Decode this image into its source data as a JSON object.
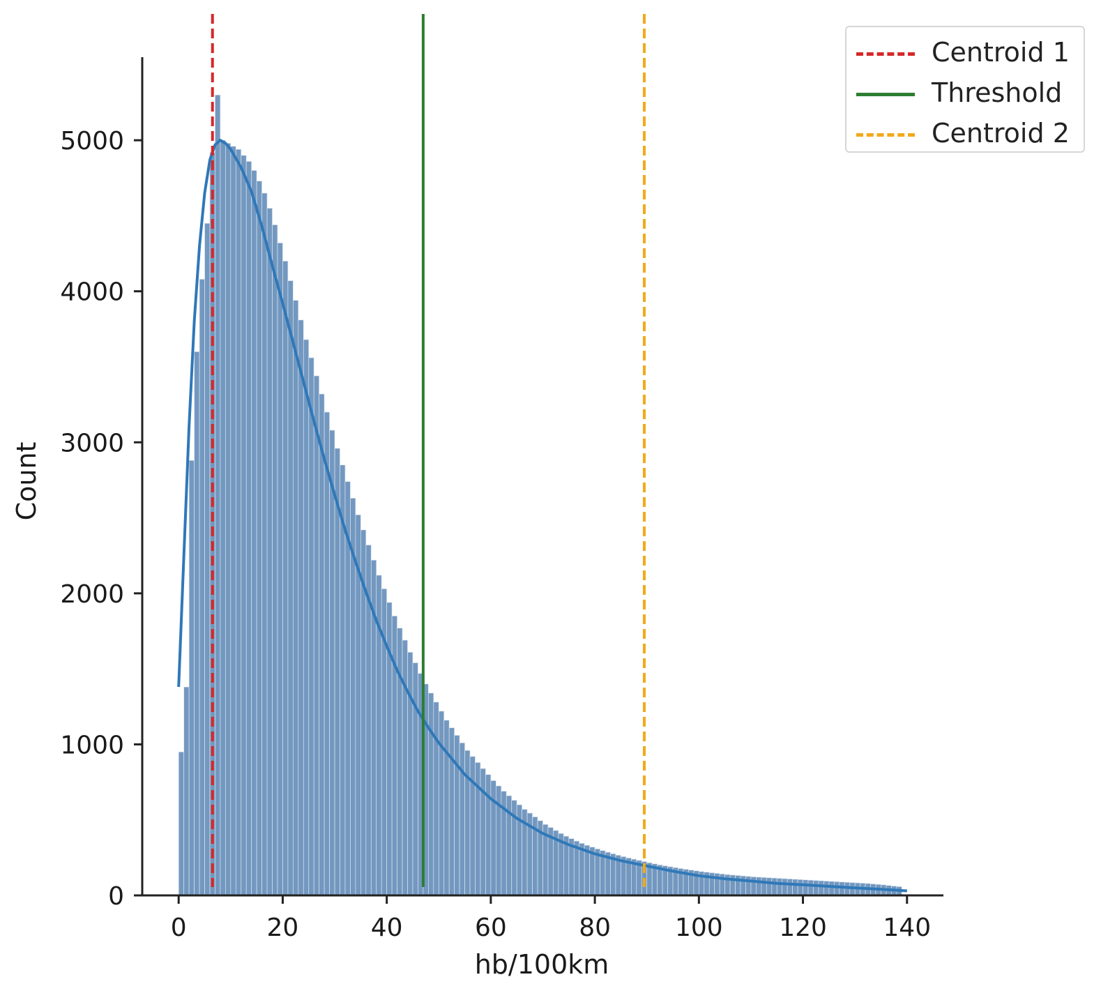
{
  "chart_data": {
    "type": "bar",
    "title": "",
    "xlabel": "hb/100km",
    "ylabel": "Count",
    "xlim": [
      -7,
      147
    ],
    "ylim": [
      0,
      5550
    ],
    "xticks": [
      0,
      20,
      40,
      60,
      80,
      100,
      120,
      140
    ],
    "yticks": [
      0,
      1000,
      2000,
      3000,
      4000,
      5000
    ],
    "bin_width": 1,
    "bin_start": 0,
    "bar_color": "#5a86b5",
    "kde_color": "#2f78b8",
    "histogram_counts": [
      950,
      1380,
      2880,
      3600,
      4080,
      4450,
      4920,
      5300,
      5000,
      4980,
      4960,
      4940,
      4900,
      4860,
      4800,
      4730,
      4650,
      4550,
      4440,
      4320,
      4200,
      4070,
      3940,
      3810,
      3680,
      3560,
      3440,
      3320,
      3200,
      3080,
      2960,
      2850,
      2740,
      2630,
      2520,
      2420,
      2320,
      2220,
      2120,
      2030,
      1940,
      1850,
      1770,
      1690,
      1610,
      1540,
      1470,
      1400,
      1340,
      1280,
      1220,
      1160,
      1110,
      1060,
      1010,
      960,
      920,
      880,
      840,
      800,
      760,
      725,
      690,
      660,
      630,
      600,
      570,
      545,
      520,
      495,
      470,
      450,
      430,
      410,
      392,
      376,
      360,
      345,
      332,
      320,
      308,
      297,
      286,
      276,
      266,
      257,
      248,
      240,
      232,
      224,
      216,
      209,
      202,
      196,
      190,
      184,
      178,
      173,
      168,
      163,
      158,
      154,
      150,
      146,
      142,
      138,
      135,
      132,
      129,
      126,
      123,
      121,
      119,
      117,
      115,
      113,
      111,
      109,
      107,
      105,
      103,
      101,
      99,
      97,
      95,
      93,
      91,
      89,
      87,
      85,
      83,
      81,
      79,
      76,
      73,
      70,
      66,
      62,
      58
    ],
    "kde_curve": {
      "x": [
        0,
        1,
        2,
        3,
        4,
        5,
        6,
        7,
        8,
        9,
        10,
        12,
        14,
        16,
        18,
        20,
        22,
        24,
        26,
        28,
        30,
        32,
        34,
        36,
        38,
        40,
        42,
        44,
        46,
        48,
        50,
        55,
        60,
        65,
        70,
        75,
        80,
        85,
        90,
        95,
        100,
        105,
        110,
        115,
        120,
        125,
        130,
        135,
        140
      ],
      "y": [
        1380,
        2250,
        3100,
        3800,
        4300,
        4650,
        4870,
        4970,
        5000,
        4980,
        4940,
        4820,
        4660,
        4430,
        4170,
        3920,
        3660,
        3400,
        3140,
        2890,
        2650,
        2420,
        2210,
        2010,
        1820,
        1650,
        1490,
        1350,
        1220,
        1110,
        1010,
        800,
        640,
        510,
        410,
        335,
        275,
        230,
        195,
        160,
        130,
        110,
        95,
        80,
        70,
        60,
        50,
        40,
        30
      ]
    },
    "vlines": [
      {
        "name": "Centroid 1",
        "x": 6.5,
        "color": "#d62728",
        "style": "dashed"
      },
      {
        "name": "Threshold",
        "x": 47,
        "color": "#2e7d32",
        "style": "solid"
      },
      {
        "name": "Centroid 2",
        "x": 89.5,
        "color": "#f2a91a",
        "style": "dashed"
      }
    ],
    "legend": {
      "position": "top-right",
      "entries": [
        "Centroid 1",
        "Threshold",
        "Centroid 2"
      ]
    }
  }
}
